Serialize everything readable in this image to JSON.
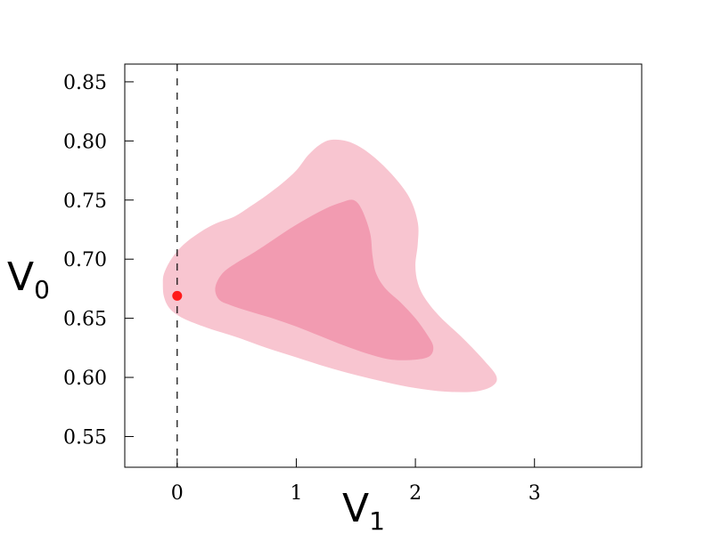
{
  "chart_data": {
    "type": "contour",
    "title": "",
    "xlabel": {
      "main": "V",
      "sub": "1"
    },
    "ylabel": {
      "main": "V",
      "sub": "0"
    },
    "xlim": [
      -0.44,
      3.9
    ],
    "ylim": [
      0.524,
      0.865
    ],
    "xticks": [
      0,
      1,
      2,
      3
    ],
    "yticks": [
      0.55,
      0.6,
      0.65,
      0.7,
      0.75,
      0.8,
      0.85
    ],
    "xtick_labels": [
      "0",
      "1",
      "2",
      "3"
    ],
    "ytick_labels": [
      "0.55",
      "0.60",
      "0.65",
      "0.70",
      "0.75",
      "0.80",
      "0.85"
    ],
    "reference_line": {
      "orientation": "vertical",
      "x": 0,
      "style": "dashed",
      "color": "#000000"
    },
    "marker": {
      "x": 0,
      "y": 0.669,
      "color": "#ff1a1a"
    },
    "contours": [
      {
        "level": "outer",
        "color": "#f8c5d0",
        "points": [
          [
            -0.11,
            0.688
          ],
          [
            -0.05,
            0.7
          ],
          [
            0.05,
            0.712
          ],
          [
            0.18,
            0.722
          ],
          [
            0.32,
            0.73
          ],
          [
            0.48,
            0.736
          ],
          [
            0.62,
            0.745
          ],
          [
            0.75,
            0.754
          ],
          [
            0.88,
            0.764
          ],
          [
            1.0,
            0.775
          ],
          [
            1.1,
            0.788
          ],
          [
            1.2,
            0.797
          ],
          [
            1.3,
            0.801
          ],
          [
            1.45,
            0.799
          ],
          [
            1.62,
            0.789
          ],
          [
            1.8,
            0.772
          ],
          [
            1.95,
            0.752
          ],
          [
            2.02,
            0.731
          ],
          [
            2.02,
            0.713
          ],
          [
            2.0,
            0.695
          ],
          [
            2.02,
            0.68
          ],
          [
            2.08,
            0.667
          ],
          [
            2.2,
            0.652
          ],
          [
            2.4,
            0.633
          ],
          [
            2.58,
            0.614
          ],
          [
            2.68,
            0.601
          ],
          [
            2.65,
            0.593
          ],
          [
            2.5,
            0.588
          ],
          [
            2.25,
            0.588
          ],
          [
            2.0,
            0.591
          ],
          [
            1.75,
            0.596
          ],
          [
            1.5,
            0.602
          ],
          [
            1.25,
            0.609
          ],
          [
            1.0,
            0.617
          ],
          [
            0.75,
            0.625
          ],
          [
            0.5,
            0.634
          ],
          [
            0.25,
            0.642
          ],
          [
            0.05,
            0.65
          ],
          [
            -0.06,
            0.658
          ],
          [
            -0.11,
            0.668
          ],
          [
            -0.12,
            0.679
          ]
        ]
      },
      {
        "level": "inner",
        "color": "#f29bb1",
        "points": [
          [
            0.35,
            0.666
          ],
          [
            0.32,
            0.676
          ],
          [
            0.38,
            0.688
          ],
          [
            0.5,
            0.697
          ],
          [
            0.65,
            0.706
          ],
          [
            0.8,
            0.716
          ],
          [
            0.95,
            0.726
          ],
          [
            1.1,
            0.735
          ],
          [
            1.25,
            0.743
          ],
          [
            1.38,
            0.748
          ],
          [
            1.48,
            0.75
          ],
          [
            1.55,
            0.742
          ],
          [
            1.62,
            0.722
          ],
          [
            1.64,
            0.703
          ],
          [
            1.67,
            0.688
          ],
          [
            1.75,
            0.675
          ],
          [
            1.88,
            0.663
          ],
          [
            2.0,
            0.65
          ],
          [
            2.1,
            0.636
          ],
          [
            2.15,
            0.626
          ],
          [
            2.12,
            0.618
          ],
          [
            2.0,
            0.615
          ],
          [
            1.8,
            0.615
          ],
          [
            1.6,
            0.62
          ],
          [
            1.4,
            0.627
          ],
          [
            1.2,
            0.635
          ],
          [
            1.0,
            0.643
          ],
          [
            0.8,
            0.65
          ],
          [
            0.6,
            0.656
          ],
          [
            0.45,
            0.661
          ]
        ]
      }
    ]
  }
}
